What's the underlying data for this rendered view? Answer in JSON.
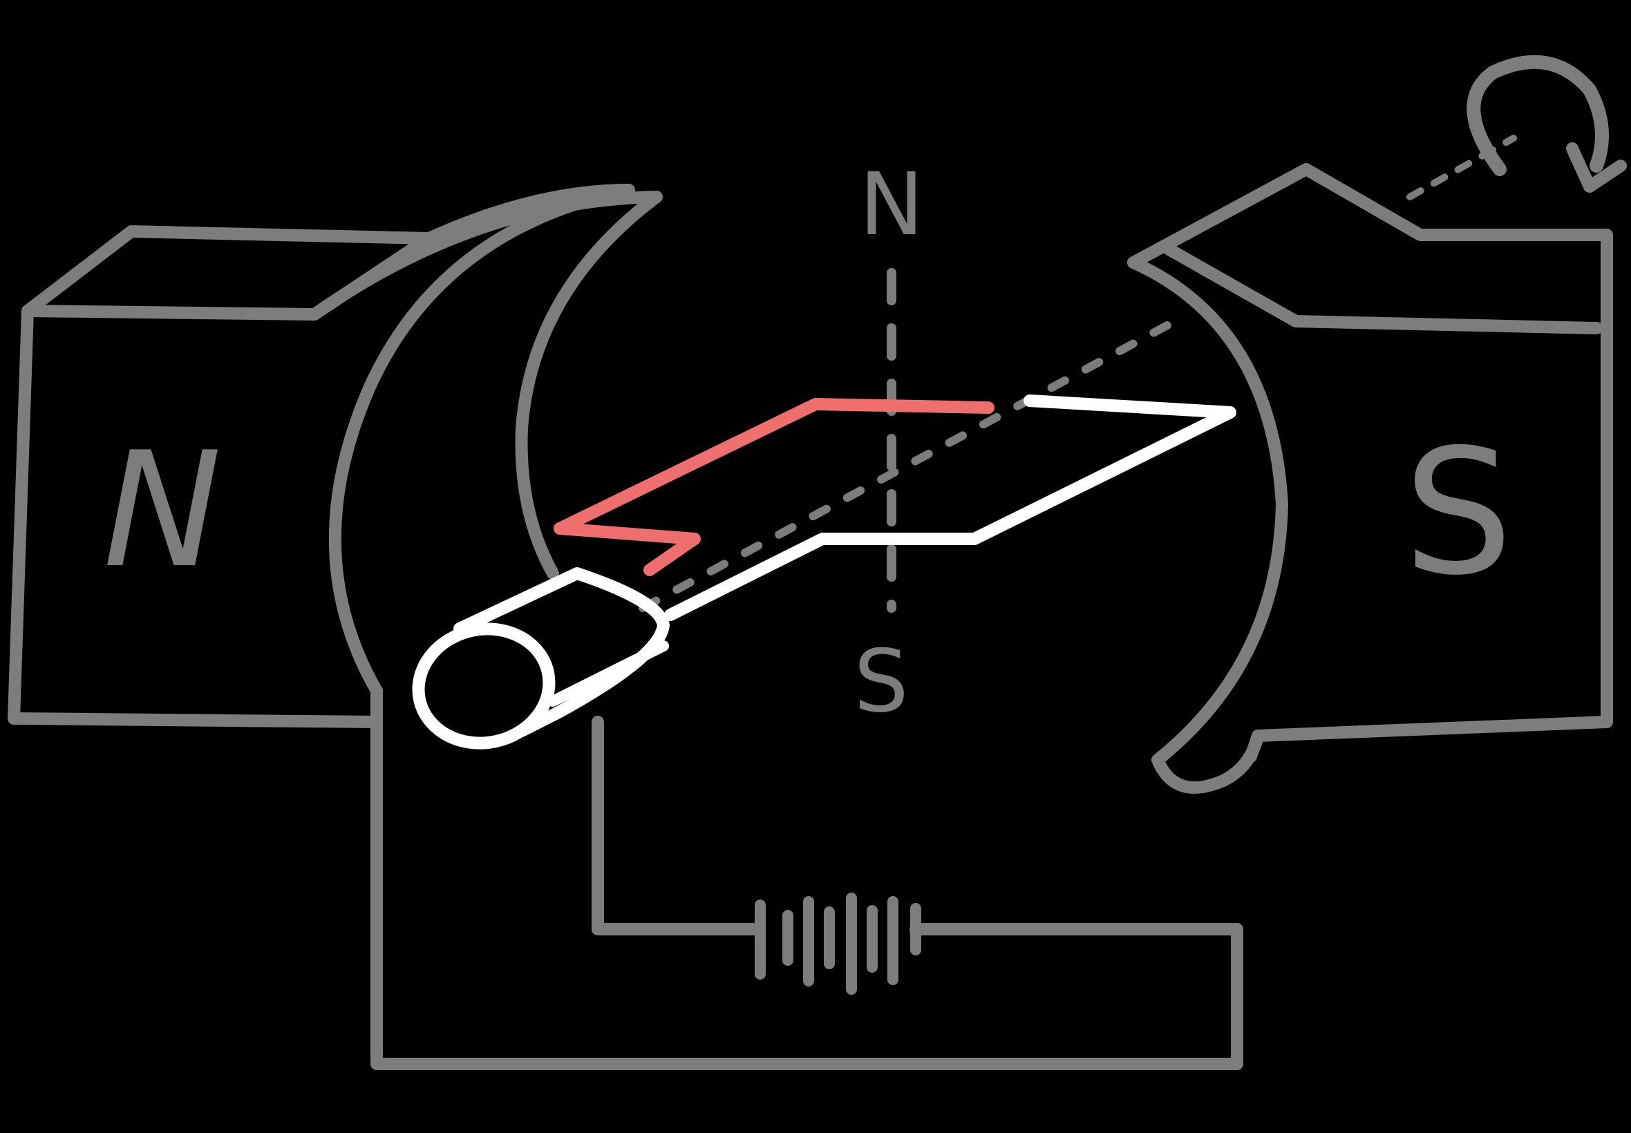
{
  "labels": {
    "left_magnet_pole": "N",
    "right_magnet_pole": "S",
    "coil_axis_top": "N",
    "coil_axis_bottom": "S"
  },
  "colors": {
    "background": "#000000",
    "magnet_and_circuit": "#7d7d7d",
    "coil_and_commutator": "#ffffff",
    "coil_highlight": "#ef6f6f"
  },
  "icons": {
    "rotation": "rotation-arrow-icon",
    "battery": "battery-icon"
  }
}
